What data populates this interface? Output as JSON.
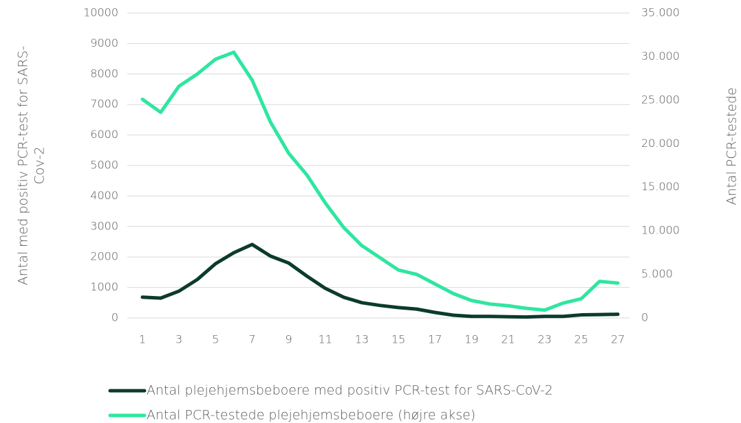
{
  "chart_data": {
    "type": "line",
    "categories": [
      1,
      null,
      3,
      null,
      5,
      null,
      7,
      null,
      9,
      null,
      11,
      null,
      13,
      null,
      15,
      null,
      17,
      null,
      19,
      null,
      21,
      null,
      23,
      null,
      25,
      null,
      27
    ],
    "ylabel": [
      "Antal med positiv PCR-test for SARS-",
      "Cov-2"
    ],
    "y2label": "Antal PCR-testede",
    "ylim": [
      0,
      10000
    ],
    "yticks": [
      0,
      1000,
      2000,
      3000,
      4000,
      5000,
      6000,
      7000,
      8000,
      9000,
      10000
    ],
    "y2lim": [
      0,
      35000
    ],
    "y2ticks": [
      0,
      {
        "value": 5000,
        "label": "5.000"
      },
      {
        "value": 10000,
        "label": "10.000"
      },
      {
        "value": 15000,
        "label": "15.000"
      },
      {
        "value": 20000,
        "label": "20.000"
      },
      {
        "value": 25000,
        "label": "25.000"
      },
      {
        "value": 30000,
        "label": "30.000"
      },
      {
        "value": 35000,
        "label": "35.000"
      }
    ],
    "grid": true,
    "legend": "bottom",
    "series": [
      {
        "name": "Antal plejehjemsbeboere med positiv PCR-test for SARS-CoV-2",
        "color": "#0b3b2c",
        "values": [
          680,
          650,
          880,
          1260,
          1780,
          2140,
          2410,
          2030,
          1800,
          1370,
          970,
          680,
          500,
          410,
          340,
          290,
          180,
          90,
          50,
          50,
          40,
          30,
          50,
          50,
          100,
          110,
          120
        ]
      },
      {
        "name": "Antal PCR-testede plejehjemsbeboere (højre akse)",
        "color": "#2ee6a0",
        "axis": "y2",
        "values": [
          25100,
          23600,
          26600,
          28000,
          29700,
          30500,
          27300,
          22500,
          18900,
          16400,
          13200,
          10400,
          8300,
          6900,
          5500,
          5000,
          3900,
          2800,
          2000,
          1600,
          1400,
          1100,
          900,
          1700,
          2200,
          4200,
          4000
        ]
      }
    ]
  }
}
